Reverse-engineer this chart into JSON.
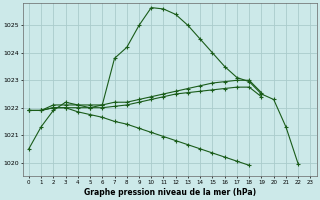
{
  "title": "Graphe pression niveau de la mer (hPa)",
  "background_color": "#cce9e9",
  "grid_color": "#aacccc",
  "line_color": "#1a5c1a",
  "xlim": [
    -0.5,
    23.5
  ],
  "ylim": [
    1019.5,
    1025.8
  ],
  "yticks": [
    1020,
    1021,
    1022,
    1023,
    1024,
    1025
  ],
  "xticks": [
    0,
    1,
    2,
    3,
    4,
    5,
    6,
    7,
    8,
    9,
    10,
    11,
    12,
    13,
    14,
    15,
    16,
    17,
    18,
    19,
    20,
    21,
    22,
    23
  ],
  "series": [
    [
      1020.5,
      1021.3,
      1021.9,
      1022.2,
      1022.1,
      1022.0,
      1022.1,
      1023.8,
      1024.2,
      1025.0,
      1025.65,
      1025.6,
      1025.4,
      1025.0,
      1024.5,
      1024.0,
      1023.5,
      1023.1,
      1022.95,
      1022.5,
      1022.3,
      1021.3,
      1019.95,
      null
    ],
    [
      1021.9,
      1021.9,
      1022.1,
      1022.1,
      1022.1,
      1022.1,
      1022.1,
      1022.2,
      1022.2,
      1022.3,
      1022.4,
      1022.5,
      1022.6,
      1022.7,
      1022.8,
      1022.9,
      1022.95,
      1023.0,
      1023.0,
      1022.55,
      null,
      null,
      null,
      null
    ],
    [
      1021.9,
      1021.9,
      1022.0,
      1022.0,
      1022.0,
      1022.0,
      1022.0,
      1022.05,
      1022.1,
      1022.2,
      1022.3,
      1022.4,
      1022.5,
      1022.55,
      1022.6,
      1022.65,
      1022.7,
      1022.75,
      1022.75,
      1022.4,
      null,
      null,
      null,
      null
    ],
    [
      1021.9,
      1021.9,
      1022.0,
      1022.0,
      1021.85,
      1021.75,
      1021.65,
      1021.5,
      1021.4,
      1021.25,
      1021.1,
      1020.95,
      1020.8,
      1020.65,
      1020.5,
      1020.35,
      1020.2,
      1020.05,
      1019.9,
      null,
      null,
      null,
      null,
      null
    ]
  ]
}
